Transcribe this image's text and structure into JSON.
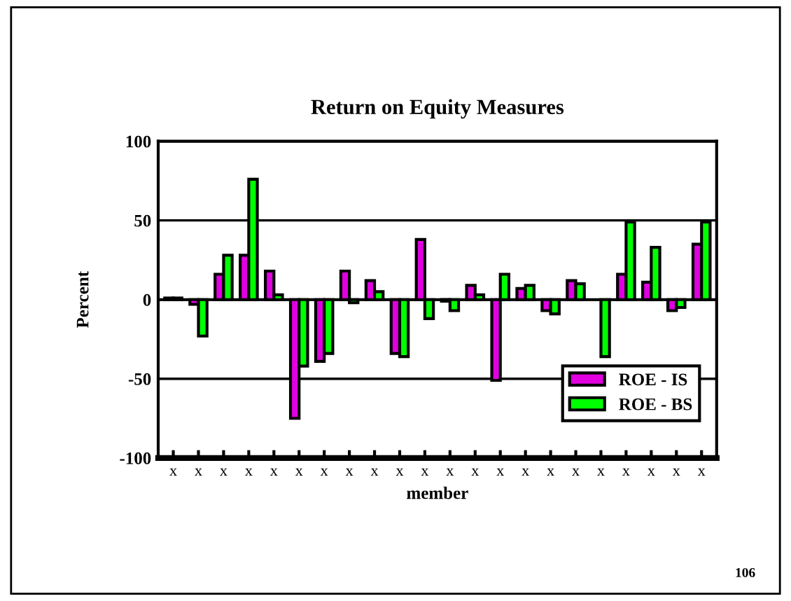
{
  "chart_data": {
    "type": "bar",
    "title": "Return on Equity Measures",
    "xlabel": "member",
    "ylabel": "Percent",
    "categories": [
      "x",
      "x",
      "x",
      "x",
      "x",
      "x",
      "x",
      "x",
      "x",
      "x",
      "x",
      "x",
      "x",
      "x",
      "x",
      "x",
      "x",
      "x",
      "x",
      "x",
      "x",
      "x"
    ],
    "series": [
      {
        "name": "ROE - IS",
        "color": "#e000e0",
        "values": [
          1,
          -3,
          16,
          28,
          18,
          -75,
          -39,
          18,
          12,
          -34,
          38,
          -1,
          9,
          -51,
          7,
          -7,
          12,
          null,
          16,
          11,
          -7,
          35
        ]
      },
      {
        "name": "ROE - BS",
        "color": "#00ff00",
        "values": [
          1,
          -23,
          28,
          76,
          3,
          -42,
          -34,
          -2,
          5,
          -36,
          -12,
          -7,
          3,
          16,
          9,
          -9,
          10,
          -36,
          49,
          33,
          -5,
          49
        ]
      }
    ],
    "ylim": [
      -100,
      100
    ],
    "yticks": [
      -100,
      -50,
      0,
      50,
      100
    ],
    "grid": "y",
    "legend": "bottom right",
    "annotations": [
      "106"
    ]
  }
}
